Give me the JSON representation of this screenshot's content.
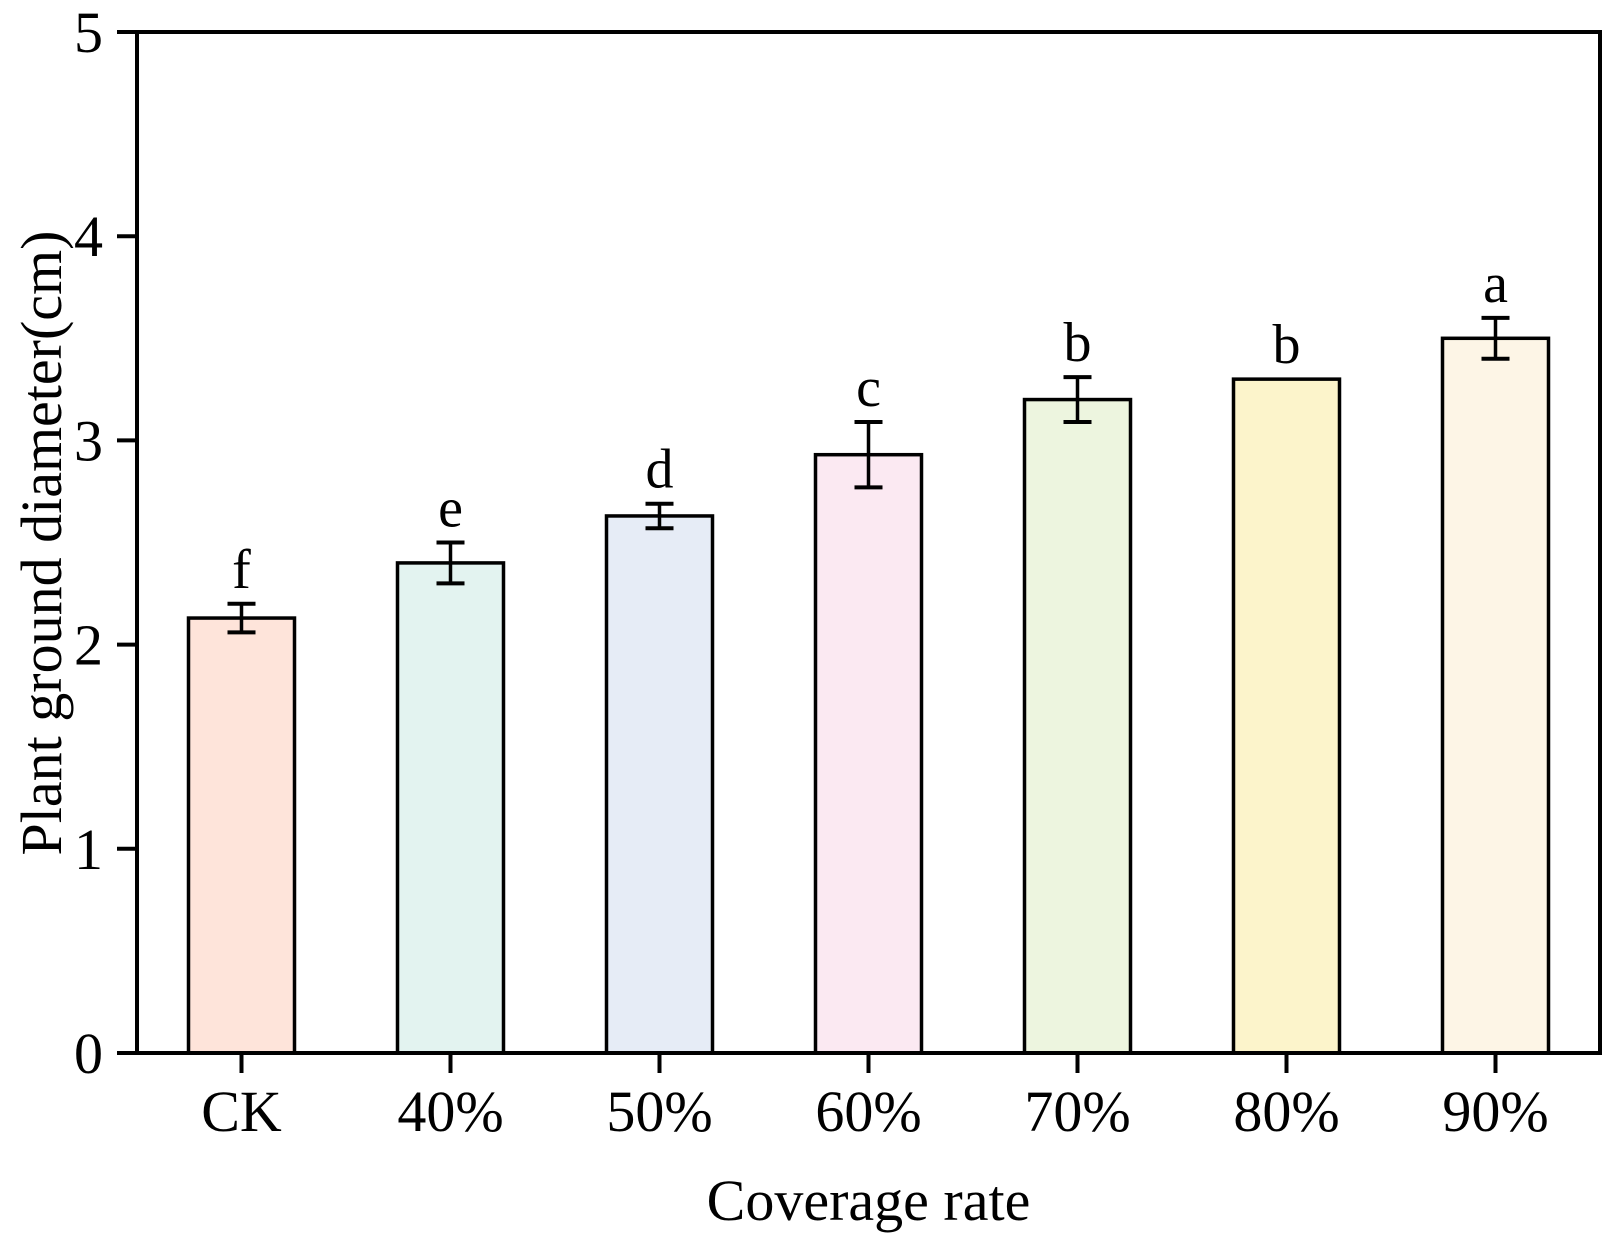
{
  "figure": {
    "background": "#ffffff",
    "text_color": "#000000",
    "axis_color": "#000000"
  },
  "chart_data": {
    "type": "bar",
    "title": "",
    "xlabel": "Coverage rate",
    "ylabel": "Plant ground diameter(cm)",
    "categories": [
      "CK",
      "40%",
      "50%",
      "60%",
      "70%",
      "80%",
      "90%"
    ],
    "series": [
      {
        "name": "Plant ground diameter",
        "values": [
          2.13,
          2.4,
          2.63,
          2.93,
          3.2,
          3.3,
          3.5
        ],
        "errors": [
          0.07,
          0.1,
          0.06,
          0.16,
          0.11,
          0,
          0.1
        ],
        "sig_letters": [
          "f",
          "e",
          "d",
          "c",
          "b",
          "b",
          "a"
        ]
      }
    ],
    "bar_colors": [
      "#fee4da",
      "#e3f3f0",
      "#e6ecf6",
      "#fbe9f2",
      "#edf5df",
      "#fcf4cb",
      "#fdf5e6"
    ],
    "bar_edge_color": "#000000",
    "ylim": [
      0,
      5
    ],
    "yticks": [
      "0",
      "1",
      "2",
      "3",
      "4",
      "5"
    ],
    "grid": false,
    "legend": null
  }
}
